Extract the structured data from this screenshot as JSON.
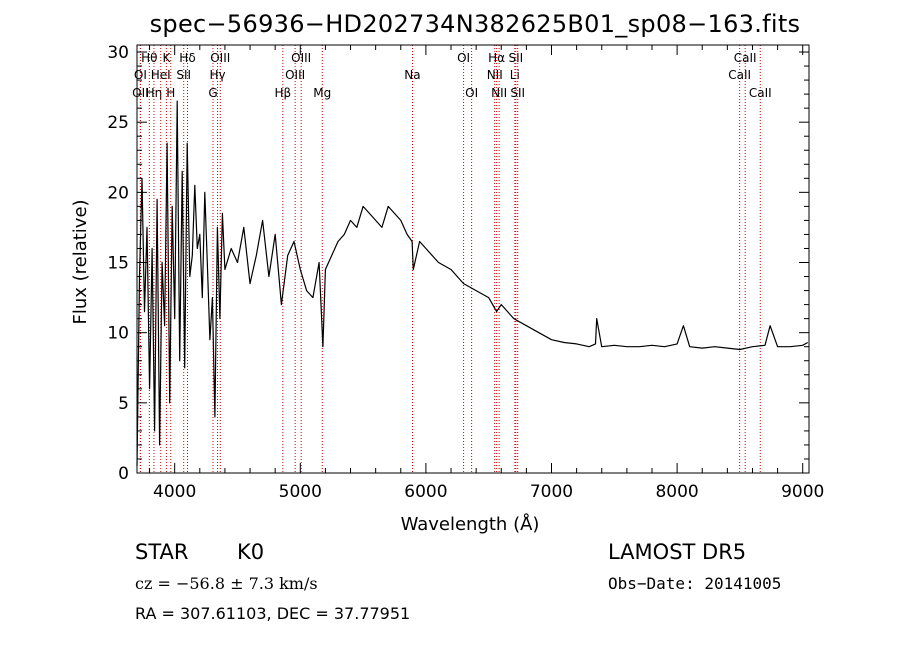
{
  "title": "spec−56936−HD202734N382625B01_sp08−163.fits",
  "info": {
    "star_label": "STAR",
    "subclass": "K0",
    "survey": "LAMOST DR5",
    "cz": "cz = −56.8 ± 7.3 km/s",
    "obs_date": "Obs−Date: 20141005",
    "radec": "RA = 307.61103, DEC =  37.77951"
  },
  "chart_data": {
    "type": "line",
    "xlabel": "Wavelength (Å)",
    "ylabel": "Flux (relative)",
    "xlim": [
      3700,
      9050
    ],
    "ylim": [
      0,
      30.5
    ],
    "xticks": [
      4000,
      5000,
      6000,
      7000,
      8000,
      9000
    ],
    "yticks": [
      0,
      5,
      10,
      15,
      20,
      25,
      30
    ],
    "grid": false,
    "colors": {
      "spectrum": "#000000",
      "line_markers": "#cc0000"
    },
    "line_markers": [
      {
        "label": "OII",
        "x": 3727,
        "row": 3
      },
      {
        "label": "Hθ",
        "x": 3798,
        "row": 1
      },
      {
        "label": "OI",
        "x": 3727,
        "row": 2
      },
      {
        "label": "Hη",
        "x": 3835,
        "row": 3
      },
      {
        "label": "HeI",
        "x": 3889,
        "row": 2
      },
      {
        "label": "K",
        "x": 3934,
        "row": 1
      },
      {
        "label": "H",
        "x": 3969,
        "row": 3
      },
      {
        "label": "SII",
        "x": 4072,
        "row": 2
      },
      {
        "label": "Hδ",
        "x": 4102,
        "row": 1
      },
      {
        "label": "G",
        "x": 4305,
        "row": 3
      },
      {
        "label": "OIII",
        "x": 4363,
        "row": 1
      },
      {
        "label": "Hγ",
        "x": 4341,
        "row": 2
      },
      {
        "label": "Hβ",
        "x": 4861,
        "row": 3
      },
      {
        "label": "OIII",
        "x": 4959,
        "row": 2
      },
      {
        "label": "OIII",
        "x": 5007,
        "row": 1
      },
      {
        "label": "Mg",
        "x": 5175,
        "row": 3
      },
      {
        "label": "Na",
        "x": 5893,
        "row": 2
      },
      {
        "label": "OI",
        "x": 6300,
        "row": 1
      },
      {
        "label": "OI",
        "x": 6364,
        "row": 3
      },
      {
        "label": "NII",
        "x": 6548,
        "row": 2
      },
      {
        "label": "Hα",
        "x": 6563,
        "row": 1
      },
      {
        "label": "NII",
        "x": 6583,
        "row": 3
      },
      {
        "label": "Li",
        "x": 6708,
        "row": 2
      },
      {
        "label": "SII",
        "x": 6716,
        "row": 1
      },
      {
        "label": "SII",
        "x": 6731,
        "row": 3
      },
      {
        "label": "CaII",
        "x": 8498,
        "row": 2
      },
      {
        "label": "CaII",
        "x": 8542,
        "row": 1
      },
      {
        "label": "CaII",
        "x": 8662,
        "row": 3
      }
    ],
    "series": [
      {
        "x": [
          3700,
          3720,
          3740,
          3760,
          3780,
          3800,
          3820,
          3840,
          3860,
          3880,
          3900,
          3920,
          3940,
          3960,
          3980,
          4000,
          4020,
          4040,
          4060,
          4080,
          4100,
          4120,
          4140,
          4160,
          4180,
          4200,
          4220,
          4240,
          4260,
          4280,
          4300,
          4320,
          4340,
          4360,
          4380,
          4400,
          4450,
          4500,
          4550,
          4600,
          4650,
          4700,
          4750,
          4800,
          4850,
          4900,
          4950,
          5000,
          5050,
          5100,
          5150,
          5180,
          5200,
          5250,
          5300,
          5350,
          5400,
          5450,
          5500,
          5550,
          5600,
          5650,
          5700,
          5750,
          5800,
          5850,
          5890,
          5900,
          5950,
          6000,
          6100,
          6200,
          6300,
          6400,
          6500,
          6563,
          6600,
          6700,
          6800,
          6900,
          7000,
          7100,
          7200,
          7300,
          7350,
          7360,
          7400,
          7500,
          7600,
          7700,
          7800,
          7900,
          8000,
          8050,
          8100,
          8200,
          8300,
          8400,
          8500,
          8600,
          8700,
          8740,
          8800,
          8900,
          9000,
          9040
        ],
        "y": [
          0.5,
          14.0,
          21.0,
          11.5,
          17.5,
          6.0,
          16.0,
          3.0,
          19.5,
          2.0,
          15.0,
          10.5,
          23.5,
          5.0,
          19.0,
          11.0,
          26.5,
          8.0,
          21.5,
          7.5,
          23.5,
          14.0,
          15.5,
          20.5,
          16.0,
          17.0,
          12.5,
          20.0,
          15.0,
          9.5,
          12.5,
          4.0,
          17.5,
          11.0,
          18.5,
          14.5,
          16.0,
          15.0,
          17.5,
          13.5,
          15.5,
          18.0,
          14.0,
          17.0,
          12.0,
          15.5,
          16.5,
          14.5,
          13.0,
          12.5,
          15.0,
          9.0,
          14.5,
          15.5,
          16.5,
          17.0,
          18.0,
          17.5,
          19.0,
          18.5,
          18.0,
          17.5,
          19.0,
          18.5,
          18.0,
          17.0,
          16.5,
          14.5,
          16.5,
          16.0,
          15.0,
          14.5,
          13.5,
          13.0,
          12.5,
          11.5,
          12.0,
          11.0,
          10.5,
          10.0,
          9.5,
          9.3,
          9.2,
          9.0,
          9.2,
          11.0,
          9.0,
          9.1,
          9.0,
          9.0,
          9.1,
          9.0,
          9.2,
          10.5,
          9.0,
          8.9,
          9.0,
          8.9,
          8.8,
          9.0,
          9.1,
          10.5,
          9.0,
          9.0,
          9.1,
          9.3
        ]
      }
    ]
  }
}
